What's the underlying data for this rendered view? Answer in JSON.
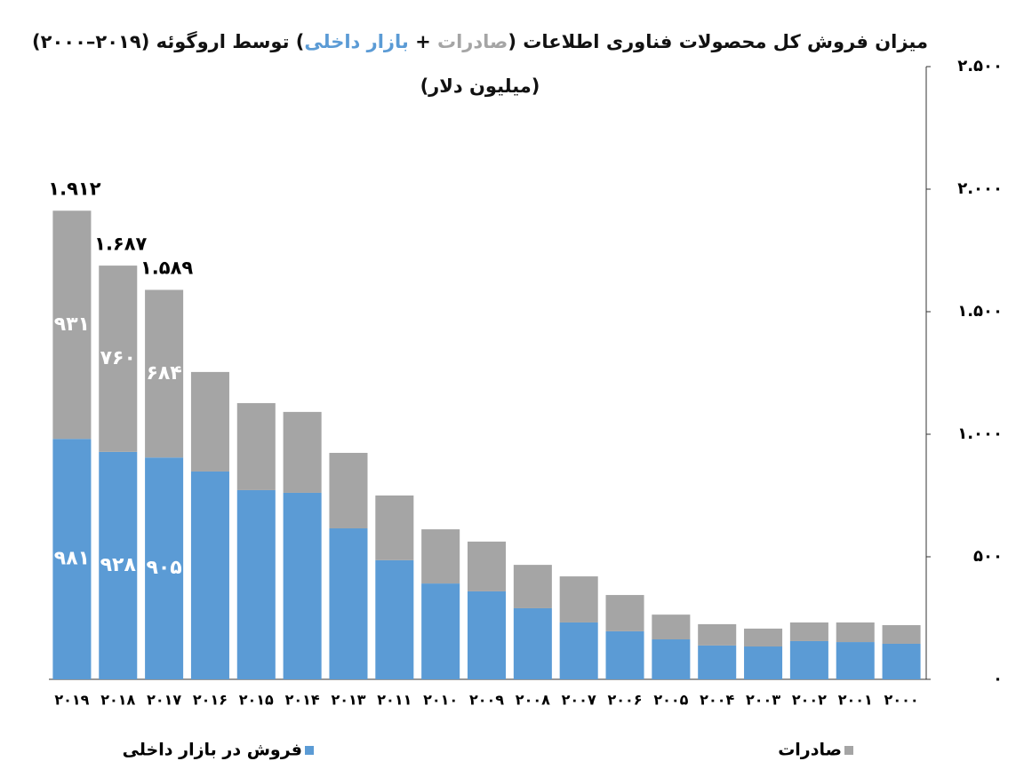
{
  "chart_data": {
    "type": "stacked-bar",
    "title": [
      "میزان فروش کل محصولات فناوری اطلاعات (",
      "صادرات",
      " + ",
      "بازار داخلی",
      ") توسط اروگوئه (۲۰۱۹–۲۰۰۰)"
    ],
    "subtitle": "(میلیون دلار)",
    "categories": [
      "۲۰۱۹",
      "۲۰۱۸",
      "۲۰۱۷",
      "۲۰۱۶",
      "۲۰۱۵",
      "۲۰۱۴",
      "۲۰۱۳",
      "۲۰۱۱",
      "۲۰۱۰",
      "۲۰۰۹",
      "۲۰۰۸",
      "۲۰۰۷",
      "۲۰۰۶",
      "۲۰۰۵",
      "۲۰۰۴",
      "۲۰۰۳",
      "۲۰۰۲",
      "۲۰۰۱",
      "۲۰۰۰"
    ],
    "series": [
      {
        "name": "فروش در بازار داخلی",
        "color": "#5b9bd5",
        "values": [
          981,
          928,
          905,
          848,
          772,
          761,
          616,
          486,
          391,
          359,
          290,
          232,
          196,
          163,
          138,
          134,
          156,
          152,
          145
        ],
        "value_labels": [
          "۹۸۱",
          "۹۲۸",
          "۹۰۵",
          null,
          null,
          null,
          null,
          null,
          null,
          null,
          null,
          null,
          null,
          null,
          null,
          null,
          null,
          null,
          null
        ]
      },
      {
        "name": "صادرات",
        "color": "#a5a5a5",
        "values": [
          931,
          760,
          684,
          406,
          355,
          330,
          308,
          264,
          221,
          203,
          177,
          188,
          148,
          101,
          87,
          73,
          76,
          80,
          76
        ],
        "value_labels": [
          "۹۳۱",
          "۷۶۰",
          "۶۸۴",
          null,
          null,
          null,
          null,
          null,
          null,
          null,
          null,
          null,
          null,
          null,
          null,
          null,
          null,
          null,
          null
        ]
      }
    ],
    "totals": {
      "values": [
        1912,
        1687,
        1589
      ],
      "labels": [
        "۱.۹۱۲",
        "۱.۶۸۷",
        "۱.۵۸۹"
      ]
    },
    "ylim": [
      0,
      2500
    ],
    "yticks": [
      {
        "value": 0,
        "label": "۰"
      },
      {
        "value": 500,
        "label": "۵۰۰"
      },
      {
        "value": 1000,
        "label": "۱.۰۰۰"
      },
      {
        "value": 1500,
        "label": "۱.۵۰۰"
      },
      {
        "value": 2000,
        "label": "۲.۰۰۰"
      },
      {
        "value": 2500,
        "label": "۲.۵۰۰"
      }
    ],
    "grid": false
  }
}
